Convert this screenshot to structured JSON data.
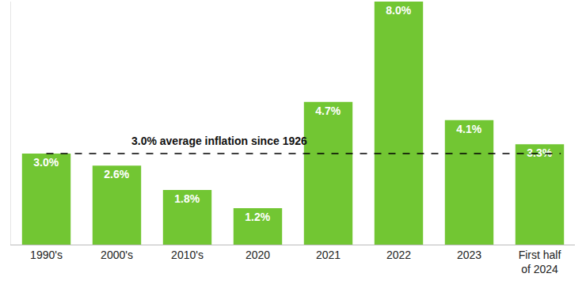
{
  "chart_data": {
    "type": "bar",
    "categories": [
      "1990's",
      "2000's",
      "2010's",
      "2020",
      "2021",
      "2022",
      "2023",
      "First half of 2024"
    ],
    "values": [
      3.0,
      2.6,
      1.8,
      1.2,
      4.7,
      8.0,
      4.1,
      3.3
    ],
    "value_labels": [
      "3.0%",
      "2.6%",
      "1.8%",
      "1.2%",
      "4.7%",
      "8.0%",
      "4.1%",
      "3.3%"
    ],
    "color": "#72c633",
    "data_labels": true,
    "ylim": [
      0,
      8
    ],
    "tick_labels": "x",
    "grid": false,
    "reference_line": {
      "value": 3.0,
      "label": "3.0% average inflation since 1926",
      "line_style": "dashed"
    }
  }
}
